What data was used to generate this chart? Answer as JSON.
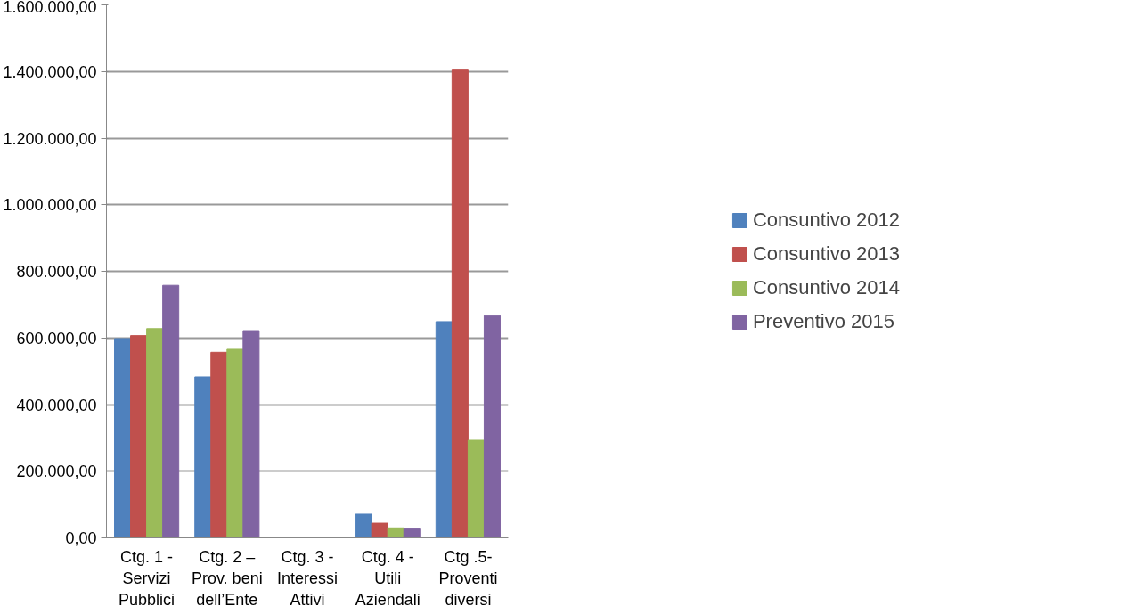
{
  "chart_data": {
    "type": "bar",
    "categories": [
      "Ctg. 1 -\nServizi\nPubblici",
      "Ctg. 2 –\nProv. beni\ndell’Ente",
      "Ctg. 3 -\nInteressi\nAttivi",
      "Ctg. 4 -\nUtili\nAziendali",
      "Ctg .5-\nProventi\ndiversi"
    ],
    "series": [
      {
        "name": "Consuntivo 2012",
        "color": "#4f81bd",
        "values": [
          598000,
          483000,
          null,
          71000,
          649000
        ]
      },
      {
        "name": "Consuntivo 2013",
        "color": "#c0504d",
        "values": [
          607000,
          557000,
          null,
          44000,
          1407000
        ]
      },
      {
        "name": "Consuntivo 2014",
        "color": "#9bbb59",
        "values": [
          628000,
          566000,
          null,
          30000,
          293000
        ]
      },
      {
        "name": "Preventivo 2015",
        "color": "#8064a2",
        "values": [
          758000,
          622000,
          null,
          27000,
          667000
        ]
      }
    ],
    "ylim": [
      0,
      1600000
    ],
    "yticks": [
      {
        "value": 0,
        "label": "0,00"
      },
      {
        "value": 200000,
        "label": "200.000,00"
      },
      {
        "value": 400000,
        "label": "400.000,00"
      },
      {
        "value": 600000,
        "label": "600.000,00"
      },
      {
        "value": 800000,
        "label": "800.000,00"
      },
      {
        "value": 1000000,
        "label": "1.000.000,00"
      },
      {
        "value": 1200000,
        "label": "1.200.000,00"
      },
      {
        "value": 1400000,
        "label": "1.400.000,00"
      },
      {
        "value": 1600000,
        "label": "1.600.000,00"
      }
    ],
    "grid": "y",
    "legend": "right"
  }
}
